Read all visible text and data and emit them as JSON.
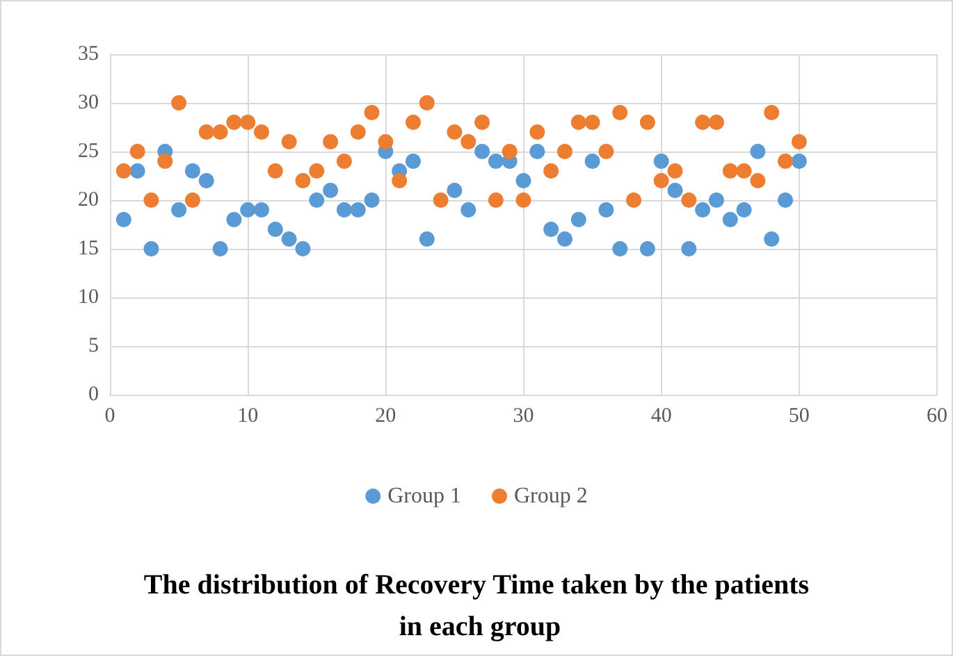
{
  "chart_data": {
    "type": "scatter",
    "title": "The distribution of Recovery Time taken by the patients in each group",
    "x": [
      1,
      2,
      3,
      4,
      5,
      6,
      7,
      8,
      9,
      10,
      11,
      12,
      13,
      14,
      15,
      16,
      17,
      18,
      19,
      20,
      21,
      22,
      23,
      24,
      25,
      26,
      27,
      28,
      29,
      30,
      31,
      32,
      33,
      34,
      35,
      36,
      37,
      38,
      39,
      40,
      41,
      42,
      43,
      44,
      45,
      46,
      47,
      48,
      49,
      50
    ],
    "series": [
      {
        "name": "Group 1",
        "color": "#5b9bd5",
        "values": [
          18,
          23,
          15,
          25,
          19,
          23,
          22,
          15,
          18,
          19,
          19,
          17,
          16,
          15,
          20,
          21,
          19,
          19,
          20,
          25,
          23,
          24,
          16,
          null,
          21,
          19,
          25,
          24,
          24,
          22,
          25,
          17,
          16,
          18,
          24,
          19,
          15,
          null,
          15,
          24,
          21,
          15,
          19,
          20,
          18,
          19,
          25,
          16,
          20,
          24
        ]
      },
      {
        "name": "Group 2",
        "color": "#ed7d31",
        "values": [
          23,
          25,
          20,
          24,
          30,
          20,
          27,
          27,
          28,
          28,
          27,
          23,
          26,
          22,
          23,
          26,
          24,
          27,
          29,
          26,
          22,
          28,
          30,
          20,
          27,
          26,
          28,
          20,
          25,
          20,
          27,
          23,
          25,
          28,
          28,
          25,
          29,
          20,
          28,
          22,
          23,
          20,
          28,
          28,
          23,
          23,
          22,
          29,
          24,
          26
        ]
      }
    ],
    "xlim": [
      0,
      60
    ],
    "xticks": [
      0,
      10,
      20,
      30,
      40,
      50,
      60
    ],
    "ylim": [
      0,
      35
    ],
    "yticks": [
      0,
      5,
      10,
      15,
      20,
      25,
      30,
      35
    ],
    "grid": true,
    "legend": "bottom",
    "marker": "circle"
  }
}
